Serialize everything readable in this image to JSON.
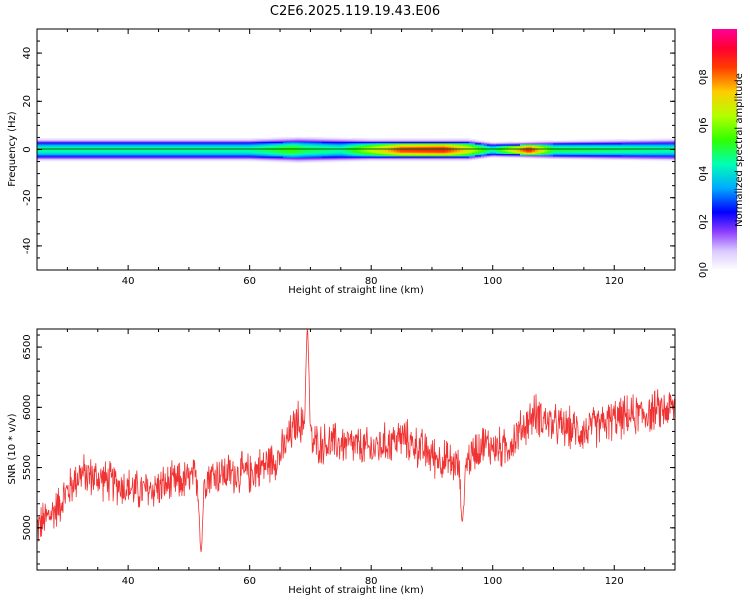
{
  "title": "C2E6.2025.119.19.43.E06",
  "colors": {
    "snr_line": "#f03232",
    "zero_line": "#006400"
  },
  "chart_data": [
    {
      "type": "heatmap",
      "xlabel": "Height of straight line (km)",
      "ylabel": "Frequency (Hz)",
      "xlim": [
        25,
        130
      ],
      "ylim": [
        -50,
        50
      ],
      "xticks": [
        40,
        60,
        80,
        100,
        120
      ],
      "yticks": [
        -40,
        -20,
        0,
        20,
        40
      ],
      "colorbar": {
        "label": "Normalized spectral amplitude",
        "range": [
          0,
          1
        ],
        "ticks": [
          0.0,
          0.2,
          0.4,
          0.6,
          0.8
        ]
      },
      "band": {
        "frequency_center": 0,
        "halfwidth_hz_profile": [
          [
            25,
            3
          ],
          [
            60,
            3
          ],
          [
            68,
            3.5
          ],
          [
            80,
            3
          ],
          [
            96,
            3
          ],
          [
            100,
            2
          ],
          [
            110,
            2.5
          ],
          [
            130,
            3
          ]
        ],
        "peak_amplitude_profile": [
          [
            25,
            0.45
          ],
          [
            60,
            0.45
          ],
          [
            67,
            0.55
          ],
          [
            69,
            0.5
          ],
          [
            75,
            0.45
          ],
          [
            85,
            0.85
          ],
          [
            92,
            0.88
          ],
          [
            95,
            0.75
          ],
          [
            100,
            0.45
          ],
          [
            106,
            0.9
          ],
          [
            110,
            0.5
          ],
          [
            130,
            0.45
          ]
        ]
      }
    },
    {
      "type": "line",
      "series_name": "SNR",
      "xlabel": "Height of straight line (km)",
      "ylabel": "SNR (10 * v/v)",
      "xlim": [
        25,
        130
      ],
      "ylim": [
        4650,
        6650
      ],
      "xticks": [
        40,
        60,
        80,
        100,
        120
      ],
      "yticks": [
        5000,
        5500,
        6000,
        6500
      ],
      "trend_points": [
        [
          25,
          5000
        ],
        [
          28,
          5150
        ],
        [
          32,
          5450
        ],
        [
          36,
          5400
        ],
        [
          42,
          5300
        ],
        [
          50,
          5400
        ],
        [
          55,
          5450
        ],
        [
          60,
          5450
        ],
        [
          65,
          5600
        ],
        [
          68,
          5900
        ],
        [
          70,
          5700
        ],
        [
          75,
          5700
        ],
        [
          80,
          5650
        ],
        [
          85,
          5750
        ],
        [
          90,
          5600
        ],
        [
          95,
          5500
        ],
        [
          98,
          5700
        ],
        [
          102,
          5650
        ],
        [
          107,
          5950
        ],
        [
          110,
          5850
        ],
        [
          115,
          5800
        ],
        [
          120,
          5900
        ],
        [
          125,
          5950
        ],
        [
          130,
          6000
        ]
      ],
      "noise_amplitude": 170,
      "spikes": [
        [
          69.5,
          6650
        ],
        [
          52,
          4800
        ],
        [
          95,
          5050
        ]
      ]
    }
  ]
}
